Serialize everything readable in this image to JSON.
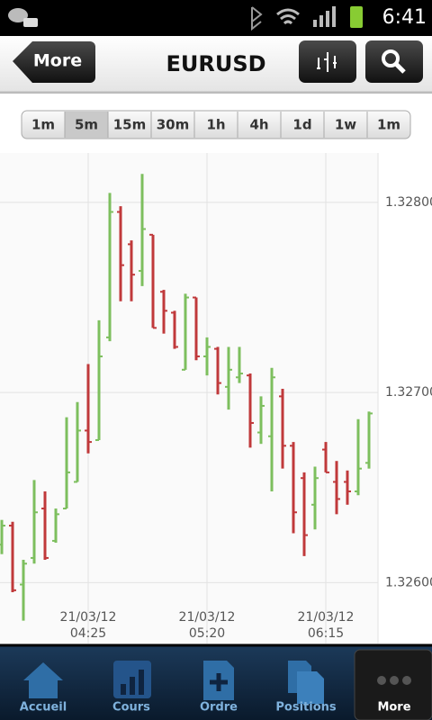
{
  "status_bar": {
    "time": "6:41"
  },
  "header": {
    "back": "More",
    "title": "EURUSD"
  },
  "timeframes": {
    "items": [
      "1m",
      "5m",
      "15m",
      "30m",
      "1h",
      "4h",
      "1d",
      "1w",
      "1m"
    ],
    "selected": 1
  },
  "chart_data": {
    "type": "ohlc",
    "categories": [
      null,
      null,
      null,
      null,
      null,
      null,
      null,
      null,
      "21/03/12\n04:25",
      null,
      null,
      null,
      null,
      null,
      null,
      null,
      null,
      null,
      null,
      "21/03/12\n05:20",
      null,
      null,
      null,
      null,
      null,
      null,
      null,
      null,
      null,
      null,
      "21/03/12\n06:15",
      null,
      null,
      null,
      null
    ],
    "open": [
      1.3262,
      1.3263,
      1.32599,
      1.32613,
      1.32639,
      1.32622,
      1.32639,
      1.32653,
      1.3268,
      1.32675,
      1.32729,
      1.32795,
      1.32778,
      1.32764,
      1.32783,
      1.32753,
      1.32742,
      1.32712,
      1.3275,
      1.32719,
      1.32723,
      1.32703,
      1.32708,
      1.32709,
      1.32679,
      1.32677,
      1.32698,
      1.32672,
      1.32655,
      1.32641,
      1.3267,
      1.32653,
      1.32653,
      1.32648,
      1.32663
    ],
    "high": [
      1.32633,
      1.32632,
      1.32612,
      1.32654,
      1.32648,
      1.32639,
      1.32687,
      1.32695,
      1.32715,
      1.32738,
      1.32805,
      1.32798,
      1.3278,
      1.32815,
      1.32783,
      1.32754,
      1.32743,
      1.32752,
      1.3275,
      1.32729,
      1.32724,
      1.32724,
      1.32724,
      1.3271,
      1.32698,
      1.32713,
      1.32702,
      1.32674,
      1.32658,
      1.32661,
      1.32674,
      1.32664,
      1.32659,
      1.32686,
      1.3269
    ],
    "low": [
      1.32615,
      1.32595,
      1.3258,
      1.3261,
      1.32612,
      1.32621,
      1.32639,
      1.32653,
      1.32668,
      1.32675,
      1.32727,
      1.32748,
      1.32748,
      1.32756,
      1.32734,
      1.32731,
      1.32723,
      1.32712,
      1.32717,
      1.32709,
      1.32699,
      1.32691,
      1.32705,
      1.32671,
      1.32673,
      1.32648,
      1.3266,
      1.32626,
      1.32614,
      1.32628,
      1.32658,
      1.32636,
      1.32641,
      1.32646,
      1.3266
    ],
    "close": [
      1.3263,
      1.32596,
      1.3261,
      1.32637,
      1.32613,
      1.32636,
      1.32658,
      1.3268,
      1.32674,
      1.32719,
      1.32795,
      1.32767,
      1.32762,
      1.32786,
      1.32734,
      1.32743,
      1.32724,
      1.3275,
      1.32719,
      1.32724,
      1.32705,
      1.32712,
      1.3271,
      1.32684,
      1.32693,
      1.32708,
      1.32672,
      1.32637,
      1.32625,
      1.32655,
      1.32658,
      1.32644,
      1.32648,
      1.3266,
      1.32689
    ],
    "up_color": "#7dbf5e",
    "down_color": "#c0393b",
    "ylim": [
      1.32568,
      1.32826
    ],
    "yticks": [
      {
        "value": 1.326,
        "label": "1.32600"
      },
      {
        "value": 1.327,
        "label": "1.32700"
      },
      {
        "value": 1.328,
        "label": "1.32800"
      }
    ],
    "grid": true
  },
  "nav": {
    "items": [
      "Accueil",
      "Cours",
      "Ordre",
      "Positions",
      "More"
    ],
    "selected": 4
  }
}
